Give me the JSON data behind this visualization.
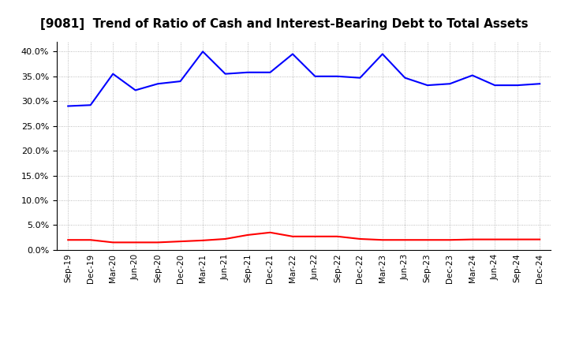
{
  "title": "[9081]  Trend of Ratio of Cash and Interest-Bearing Debt to Total Assets",
  "x_labels": [
    "Sep-19",
    "Dec-19",
    "Mar-20",
    "Jun-20",
    "Sep-20",
    "Dec-20",
    "Mar-21",
    "Jun-21",
    "Sep-21",
    "Dec-21",
    "Mar-22",
    "Jun-22",
    "Sep-22",
    "Dec-22",
    "Mar-23",
    "Jun-23",
    "Sep-23",
    "Dec-23",
    "Mar-24",
    "Jun-24",
    "Sep-24",
    "Dec-24"
  ],
  "cash": [
    0.02,
    0.02,
    0.015,
    0.015,
    0.015,
    0.017,
    0.019,
    0.022,
    0.03,
    0.035,
    0.027,
    0.027,
    0.027,
    0.022,
    0.02,
    0.02,
    0.02,
    0.02,
    0.021,
    0.021,
    0.021,
    0.021
  ],
  "interest_bearing_debt": [
    0.29,
    0.292,
    0.355,
    0.322,
    0.335,
    0.34,
    0.4,
    0.355,
    0.358,
    0.358,
    0.395,
    0.35,
    0.35,
    0.347,
    0.395,
    0.347,
    0.332,
    0.335,
    0.352,
    0.332,
    0.332,
    0.335
  ],
  "cash_color": "#FF0000",
  "debt_color": "#0000FF",
  "ylim": [
    0.0,
    0.42
  ],
  "yticks": [
    0.0,
    0.05,
    0.1,
    0.15,
    0.2,
    0.25,
    0.3,
    0.35,
    0.4
  ],
  "background_color": "#FFFFFF",
  "grid_color": "#AAAAAA",
  "title_fontsize": 11
}
